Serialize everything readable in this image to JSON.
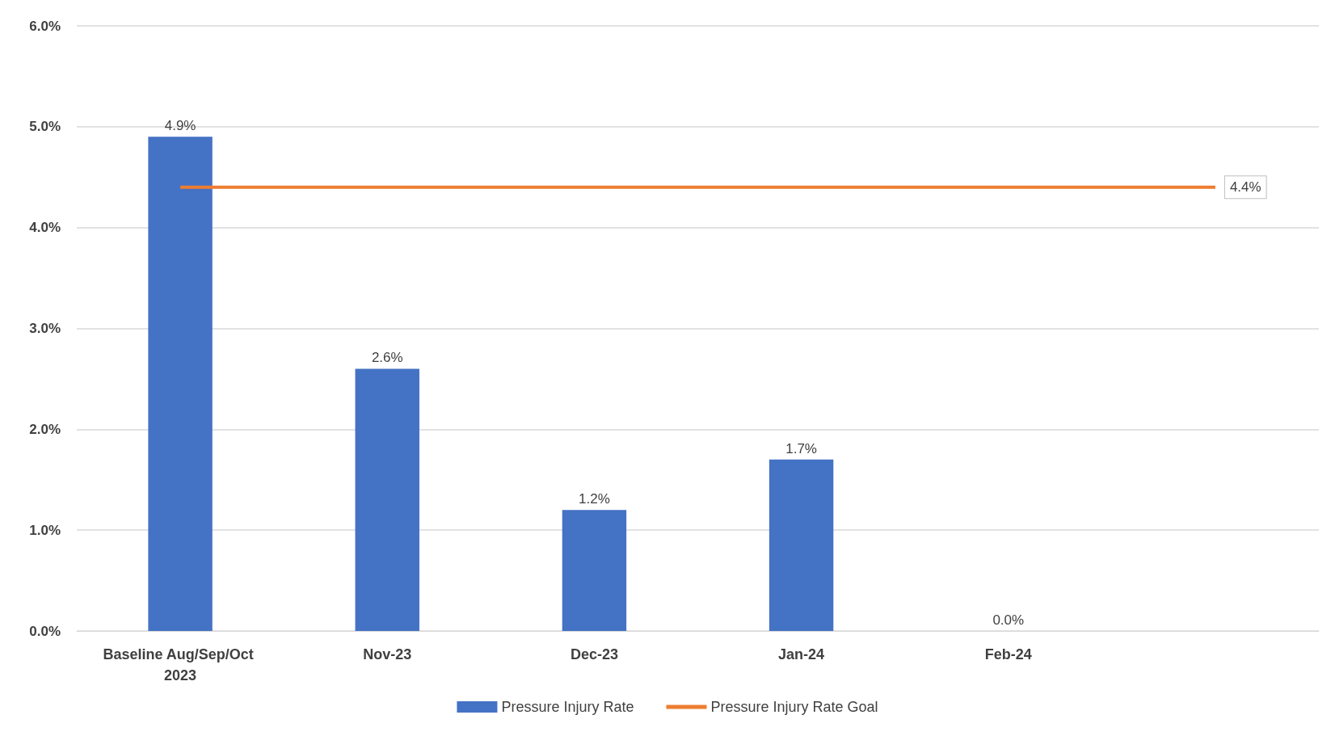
{
  "chart_data": {
    "type": "bar",
    "categories": [
      "Baseline Aug/Sep/Oct 2023",
      "Nov-23",
      "Dec-23",
      "Jan-24",
      "Feb-24",
      null
    ],
    "series": [
      {
        "name": "Pressure Injury Rate",
        "color": "#4472c4",
        "values": [
          4.9,
          2.6,
          1.2,
          1.7,
          0.0,
          null
        ],
        "value_labels": [
          "4.9%",
          "2.6%",
          "1.2%",
          "1.7%",
          "0.0%",
          null
        ]
      },
      {
        "name": "Pressure Injury Rate Goal",
        "type": "line",
        "color": "#ed7d31",
        "values": [
          4.4,
          4.4,
          4.4,
          4.4,
          4.4,
          4.4
        ],
        "value_labels": [
          null,
          null,
          null,
          null,
          null,
          "4.4%"
        ]
      }
    ],
    "ylim": [
      0,
      6
    ],
    "yticks": [
      {
        "value": 0,
        "label": "0.0%"
      },
      {
        "value": 1,
        "label": "1.0%"
      },
      {
        "value": 2,
        "label": "2.0%"
      },
      {
        "value": 3,
        "label": "3.0%"
      },
      {
        "value": 4,
        "label": "4.0%"
      },
      {
        "value": 5,
        "label": "5.0%"
      },
      {
        "value": 6,
        "label": "6.0%"
      }
    ],
    "grid": "y",
    "legend": "bottom",
    "marker": "none"
  }
}
